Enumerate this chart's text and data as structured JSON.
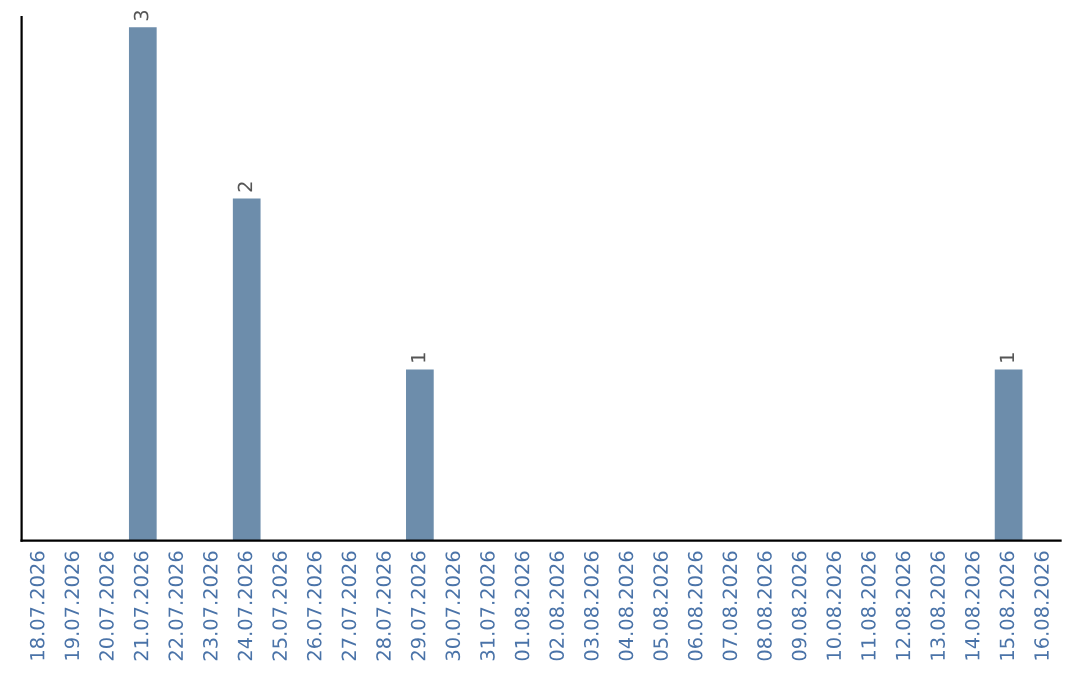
{
  "chart_data": {
    "type": "bar",
    "categories": [
      "18.07.2026",
      "19.07.2026",
      "20.07.2026",
      "21.07.2026",
      "22.07.2026",
      "23.07.2026",
      "24.07.2026",
      "25.07.2026",
      "26.07.2026",
      "27.07.2026",
      "28.07.2026",
      "29.07.2026",
      "30.07.2026",
      "31.07.2026",
      "01.08.2026",
      "02.08.2026",
      "03.08.2026",
      "04.08.2026",
      "05.08.2026",
      "06.08.2026",
      "07.08.2026",
      "08.08.2026",
      "09.08.2026",
      "10.08.2026",
      "11.08.2026",
      "12.08.2026",
      "13.08.2026",
      "14.08.2026",
      "15.08.2026",
      "16.08.2026"
    ],
    "values": [
      0,
      0,
      0,
      3,
      0,
      0,
      2,
      0,
      0,
      0,
      0,
      1,
      0,
      0,
      0,
      0,
      0,
      0,
      0,
      0,
      0,
      0,
      0,
      0,
      0,
      0,
      0,
      0,
      1,
      0
    ],
    "value_labels": [
      null,
      null,
      null,
      "3",
      null,
      null,
      "2",
      null,
      null,
      null,
      null,
      "1",
      null,
      null,
      null,
      null,
      null,
      null,
      null,
      null,
      null,
      null,
      null,
      null,
      null,
      null,
      null,
      null,
      "1",
      null
    ],
    "color": "#6d8dab",
    "tick_labels": "x",
    "grid": false,
    "legend": false
  }
}
